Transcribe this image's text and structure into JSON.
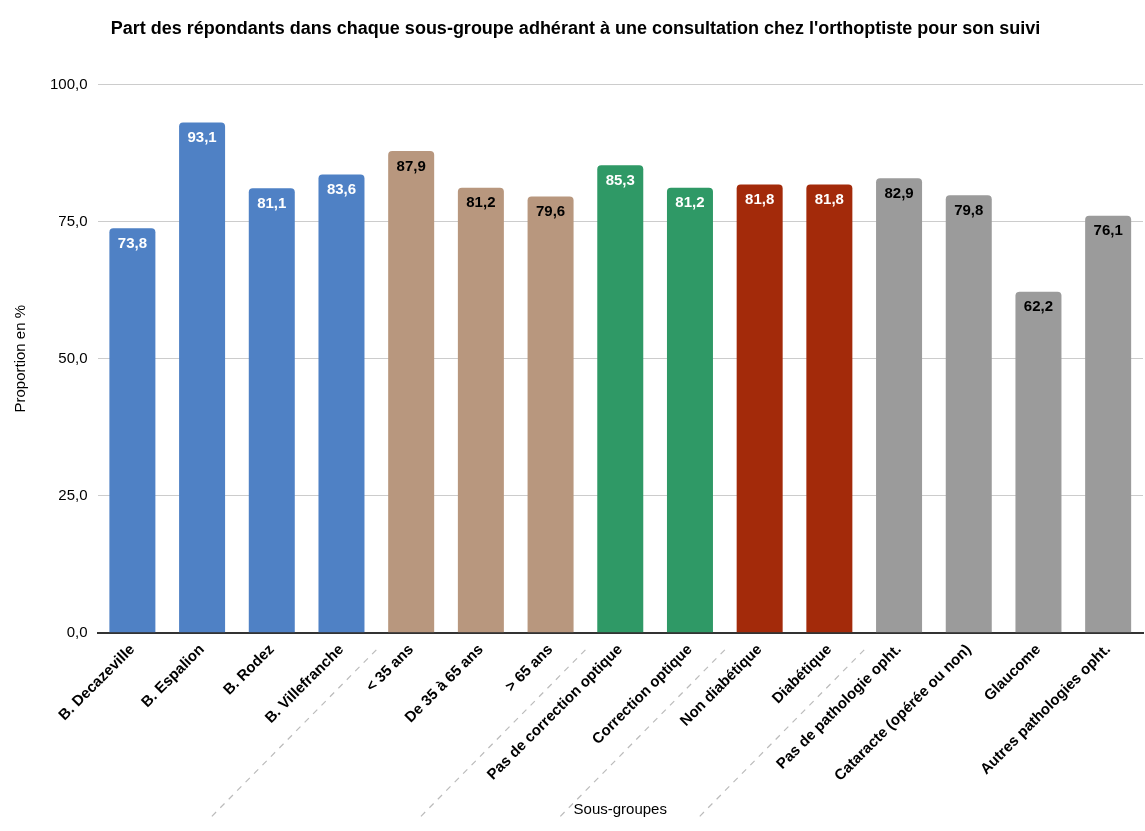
{
  "chart_data": {
    "type": "bar",
    "title": "Part des répondants dans chaque sous-groupe adhérant à une consultation chez l'orthoptiste pour son suivi",
    "xlabel": "Sous-groupes",
    "ylabel": "Proportion en %",
    "categories": [
      "B. Decazeville",
      "B. Espalion",
      "B. Rodez",
      "B. Villefranche",
      "< 35 ans",
      "De 35 à 65 ans",
      "> 65 ans",
      "Pas de correction optique",
      "Correction optique",
      "Non diabétique",
      "Diabétique",
      "Pas de pathologie opht.",
      "Cataracte (opérée ou non)",
      "Glaucome",
      "Autres pathologies opht."
    ],
    "values": [
      73.8,
      93.1,
      81.1,
      83.6,
      87.9,
      81.2,
      79.6,
      85.3,
      81.2,
      81.8,
      81.8,
      82.9,
      79.8,
      62.2,
      76.1
    ],
    "colors": [
      "#4f81c5",
      "#4f81c5",
      "#4f81c5",
      "#4f81c5",
      "#b8977e",
      "#b8977e",
      "#b8977e",
      "#2f9966",
      "#2f9966",
      "#a32a0a",
      "#a32a0a",
      "#9b9b9b",
      "#9b9b9b",
      "#9b9b9b",
      "#9b9b9b"
    ],
    "value_labels": [
      "73,8",
      "93,1",
      "81,1",
      "83,6",
      "87,9",
      "81,2",
      "79,6",
      "85,3",
      "81,2",
      "81,8",
      "81,8",
      "82,9",
      "79,8",
      "62,2",
      "76,1"
    ],
    "ylim": [
      0,
      100
    ],
    "yticks": [
      {
        "value": 0,
        "label": "0,0"
      },
      {
        "value": 25,
        "label": "25,0"
      },
      {
        "value": 50,
        "label": "50,0"
      },
      {
        "value": 75,
        "label": "75,0"
      },
      {
        "value": 100,
        "label": "100,0"
      }
    ],
    "grid": "y",
    "legend": false
  }
}
